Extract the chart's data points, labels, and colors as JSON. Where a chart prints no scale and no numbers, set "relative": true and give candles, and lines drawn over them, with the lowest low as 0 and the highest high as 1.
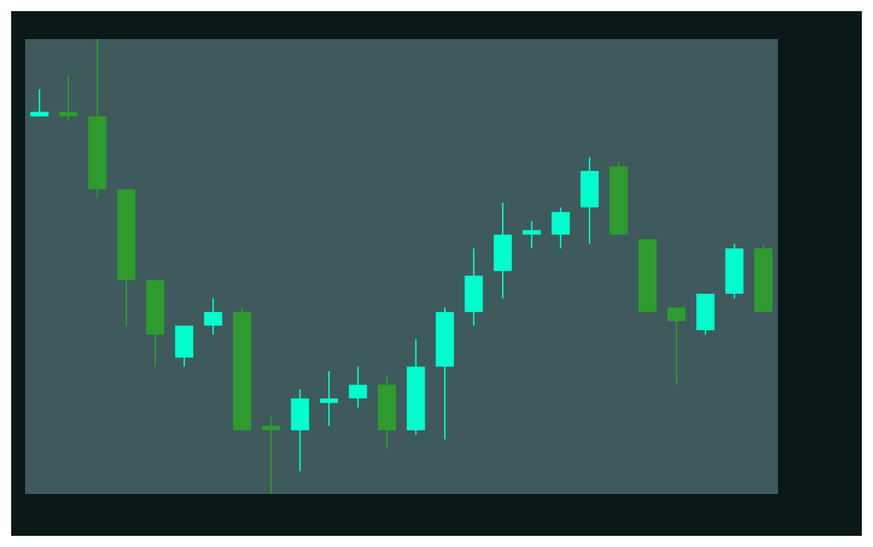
{
  "chart_data": {
    "type": "candlestick",
    "relative": true,
    "grid": false,
    "categories": [
      null,
      null,
      null,
      null,
      null,
      null,
      null,
      null,
      null,
      null,
      null,
      null,
      null,
      null,
      null,
      null,
      null,
      null,
      null,
      null,
      null,
      null,
      null,
      null,
      null,
      null
    ],
    "ohlc": [
      [
        0.83,
        0.89,
        0.83,
        0.84
      ],
      [
        0.84,
        0.92,
        0.82,
        0.83
      ],
      [
        0.83,
        1.0,
        0.65,
        0.67
      ],
      [
        0.67,
        0.67,
        0.37,
        0.47
      ],
      [
        0.47,
        0.47,
        0.28,
        0.35
      ],
      [
        0.3,
        0.37,
        0.28,
        0.37
      ],
      [
        0.37,
        0.43,
        0.35,
        0.4
      ],
      [
        0.4,
        0.41,
        0.14,
        0.14
      ],
      [
        0.15,
        0.17,
        0,
        0.14
      ],
      [
        0.14,
        0.23,
        0.05,
        0.21
      ],
      [
        0.2,
        0.27,
        0.15,
        0.21
      ],
      [
        0.21,
        0.28,
        0.19,
        0.24
      ],
      [
        0.24,
        0.26,
        0.1,
        0.14
      ],
      [
        0.14,
        0.34,
        0.13,
        0.28
      ],
      [
        0.28,
        0.41,
        0.12,
        0.4
      ],
      [
        0.4,
        0.54,
        0.37,
        0.48
      ],
      [
        0.49,
        0.64,
        0.43,
        0.57
      ],
      [
        0.57,
        0.6,
        0.54,
        0.58
      ],
      [
        0.57,
        0.63,
        0.54,
        0.62
      ],
      [
        0.63,
        0.74,
        0.55,
        0.71
      ],
      [
        0.72,
        0.73,
        0.57,
        0.57
      ],
      [
        0.56,
        0.56,
        0.4,
        0.4
      ],
      [
        0.41,
        0.41,
        0.24,
        0.38
      ],
      [
        0.36,
        0.44,
        0.35,
        0.44
      ],
      [
        0.44,
        0.55,
        0.43,
        0.54
      ],
      [
        0.54,
        0.55,
        0.4,
        0.4
      ]
    ],
    "colors": [
      "#00ffcc",
      "#2e9b2e",
      "#2e9b2e",
      "#2e9b2e",
      "#2e9b2e",
      "#00ffcc",
      "#00ffcc",
      "#2e9b2e",
      "#2e9b2e",
      "#00ffcc",
      "#00ffcc",
      "#00ffcc",
      "#2e9b2e",
      "#00ffcc",
      "#00ffcc",
      "#00ffcc",
      "#00ffcc",
      "#00ffcc",
      "#00ffcc",
      "#00ffcc",
      "#2e9b2e",
      "#2e9b2e",
      "#2e9b2e",
      "#00ffcc",
      "#00ffcc",
      "#2e9b2e"
    ]
  }
}
